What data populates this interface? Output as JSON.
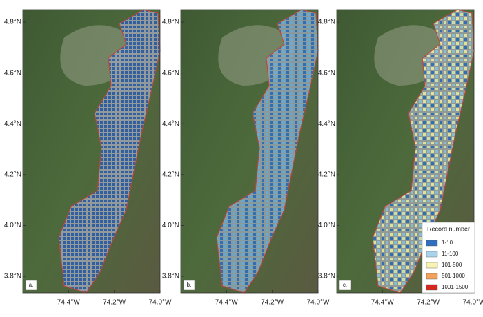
{
  "map": {
    "xlim": [
      -74.6,
      -74.0
    ],
    "ylim": [
      3.735,
      4.849
    ],
    "xticks": [
      {
        "value": -74.4,
        "label": "74.4°W"
      },
      {
        "value": -74.2,
        "label": "74.2°W"
      },
      {
        "value": -74.0,
        "label": "74.0°W"
      }
    ],
    "yticks": [
      {
        "value": 4.8,
        "label": "4.8°N"
      },
      {
        "value": 4.6,
        "label": "4.6°N"
      },
      {
        "value": 4.4,
        "label": "4.4°N"
      },
      {
        "value": 4.2,
        "label": "4.2°N"
      },
      {
        "value": 4.0,
        "label": "4.0°N"
      },
      {
        "value": 3.8,
        "label": "3.8°N"
      }
    ]
  },
  "panels": [
    {
      "label": "a."
    },
    {
      "label": "b."
    },
    {
      "label": "c."
    }
  ],
  "legend": {
    "title": "Record number",
    "items": [
      {
        "label": "1-10",
        "color": "#2f6fc0"
      },
      {
        "label": "11-100",
        "color": "#a9d3ea"
      },
      {
        "label": "101-500",
        "color": "#f7f3b0"
      },
      {
        "label": "501-1000",
        "color": "#f2a25a"
      },
      {
        "label": "1001-1500",
        "color": "#d7261e"
      }
    ]
  }
}
